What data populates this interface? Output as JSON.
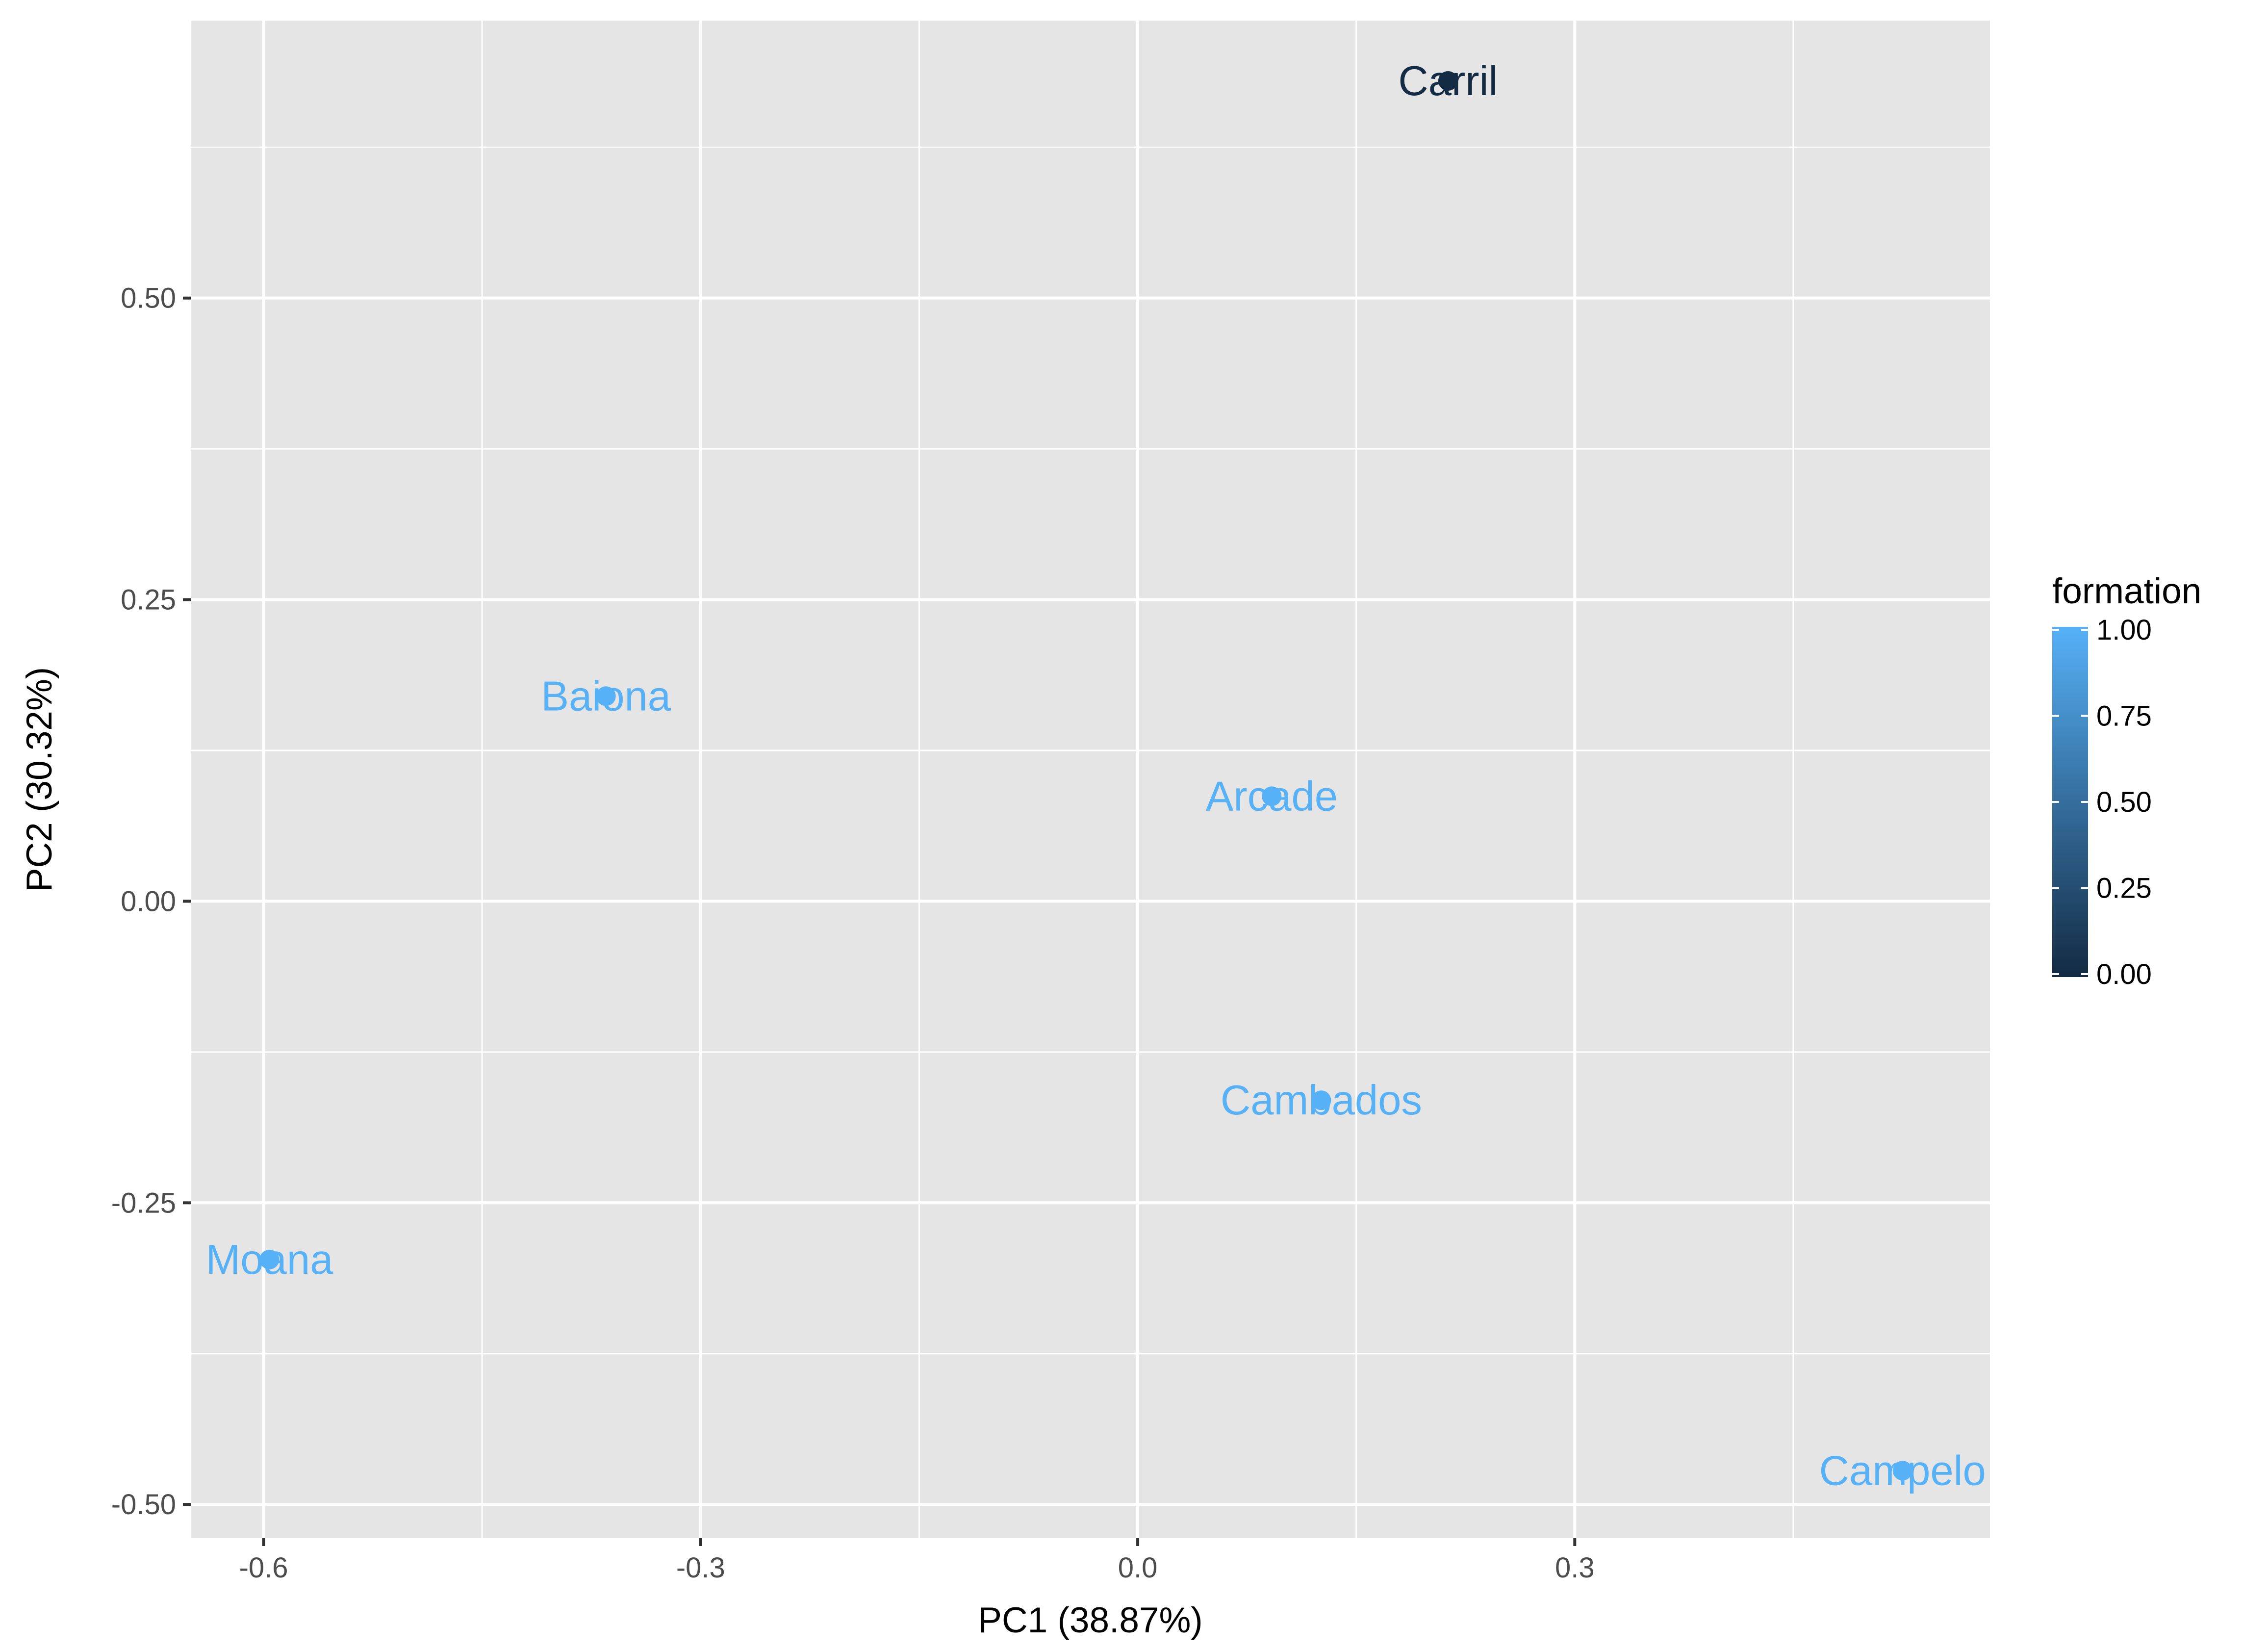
{
  "chart_data": {
    "type": "scatter",
    "xlabel": "PC1 (38.87%)",
    "ylabel": "PC2 (30.32%)",
    "xlim": [
      -0.65,
      0.585
    ],
    "ylim": [
      -0.528,
      0.73
    ],
    "x_ticks": [
      -0.6,
      -0.3,
      0.0,
      0.3
    ],
    "x_tick_labels": [
      "-0.6",
      "-0.3",
      "0.0",
      "0.3"
    ],
    "y_ticks": [
      0.5,
      0.25,
      0.0,
      -0.25,
      -0.5
    ],
    "y_tick_labels": [
      "0.50",
      "0.25",
      "0.00",
      "-0.25",
      "-0.50"
    ],
    "grid": true,
    "points": [
      {
        "label": "Carril",
        "x": 0.213,
        "y": 0.68,
        "formation": 0.0
      },
      {
        "label": "Baiona",
        "x": -0.365,
        "y": 0.17,
        "formation": 1.0
      },
      {
        "label": "Arcade",
        "x": 0.092,
        "y": 0.087,
        "formation": 1.0
      },
      {
        "label": "Cambados",
        "x": 0.126,
        "y": -0.165,
        "formation": 1.0
      },
      {
        "label": "Moana",
        "x": -0.596,
        "y": -0.297,
        "formation": 1.0
      },
      {
        "label": "Campelo",
        "x": 0.525,
        "y": -0.472,
        "formation": 1.0
      }
    ],
    "legend": {
      "title": "formation",
      "position": "right",
      "ticks": [
        1.0,
        0.75,
        0.5,
        0.25,
        0.0
      ],
      "tick_labels": [
        "1.00",
        "0.75",
        "0.50",
        "0.25",
        "0.00"
      ],
      "color_low": "#132b43",
      "color_high": "#56b1f7"
    },
    "colors": {
      "panel_bg": "#e5e5e5",
      "grid": "#ffffff"
    }
  }
}
